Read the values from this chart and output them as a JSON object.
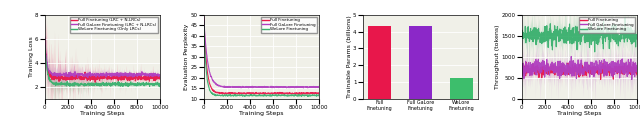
{
  "fig_width": 6.4,
  "fig_height": 1.35,
  "dpi": 100,
  "plot1": {
    "xlabel": "Training Steps",
    "ylabel": "Training Loss",
    "xlim": [
      0,
      10000
    ],
    "ylim": [
      1,
      8
    ],
    "yticks": [
      2,
      4,
      6,
      8
    ],
    "xticks": [
      0,
      2000,
      4000,
      6000,
      8000,
      10000
    ],
    "legend": [
      {
        "label": "Full Finetuning (LRC + N-LRCs)",
        "color": "#e8174b"
      },
      {
        "label": "Full GaLore Finetuning (LRC + N-LRCs)",
        "color": "#b03fc0"
      },
      {
        "label": "WeLore Finetuning (Only LRCs)",
        "color": "#3ab06e"
      }
    ],
    "series": [
      {
        "mean_start": 6.0,
        "mean_end": 2.75,
        "color": "#e8174b",
        "band_std": 0.8,
        "noise_std": 0.12,
        "decay": 0.006
      },
      {
        "mean_start": 6.0,
        "mean_end": 3.0,
        "color": "#b03fc0",
        "band_std": 0.4,
        "noise_std": 0.08,
        "decay": 0.006
      },
      {
        "mean_start": 5.5,
        "mean_end": 2.2,
        "color": "#3ab06e",
        "band_std": 0.35,
        "noise_std": 0.07,
        "decay": 0.005
      }
    ]
  },
  "plot2": {
    "xlabel": "Training Steps",
    "ylabel": "Evaluation Perplexity",
    "xlim": [
      0,
      10000
    ],
    "ylim": [
      10,
      50
    ],
    "yticks": [
      10,
      15,
      20,
      25,
      30,
      35,
      40,
      45,
      50
    ],
    "xticks": [
      0,
      2000,
      4000,
      6000,
      8000,
      10000
    ],
    "legend": [
      {
        "label": "Full Finetuning",
        "color": "#e8174b"
      },
      {
        "label": "Full GaLore Finetuning",
        "color": "#b03fc0"
      },
      {
        "label": "WeLore Finetuning",
        "color": "#3ab06e"
      }
    ],
    "series": [
      {
        "start": 49,
        "end": 12.5,
        "color": "#e8174b",
        "decay": 0.004,
        "noise": 0.15
      },
      {
        "start": 49,
        "end": 15.5,
        "color": "#b03fc0",
        "decay": 0.003,
        "noise": 0.15
      },
      {
        "start": 47,
        "end": 11.5,
        "color": "#3ab06e",
        "decay": 0.005,
        "noise": 0.15
      }
    ]
  },
  "plot3": {
    "ylabel": "Trainable Params (billions)",
    "ylim": [
      0,
      5
    ],
    "yticks": [
      0,
      1,
      2,
      3,
      4,
      5
    ],
    "categories": [
      "Full\nFinetuning",
      "Full GaLore\nFinetuning",
      "WeLore\nFinetuning"
    ],
    "values": [
      4.35,
      4.35,
      1.2
    ],
    "colors": [
      "#e8174b",
      "#8b28c8",
      "#3dbe6c"
    ],
    "bar_width": 0.55
  },
  "plot4": {
    "xlabel": "Training Steps",
    "ylabel": "Throughput (tokens)",
    "xlim": [
      0,
      10000
    ],
    "ylim": [
      0,
      2000
    ],
    "yticks": [
      0,
      500,
      1000,
      1500,
      2000
    ],
    "xticks": [
      0,
      2000,
      4000,
      6000,
      8000,
      10000
    ],
    "legend": [
      {
        "label": "Full Finetuning",
        "color": "#e8174b"
      },
      {
        "label": "Full GaLore Finetuning",
        "color": "#b03fc0"
      },
      {
        "label": "WeLore Finetuning",
        "color": "#3ab06e"
      }
    ],
    "series": [
      {
        "mean": 680,
        "color": "#e8174b",
        "band_std": 120,
        "noise_std": 60
      },
      {
        "mean": 730,
        "color": "#b03fc0",
        "band_std": 280,
        "noise_std": 100
      },
      {
        "mean": 1520,
        "color": "#3ab06e",
        "band_std": 280,
        "noise_std": 120
      }
    ]
  },
  "bg_color": "#f0f0e8"
}
